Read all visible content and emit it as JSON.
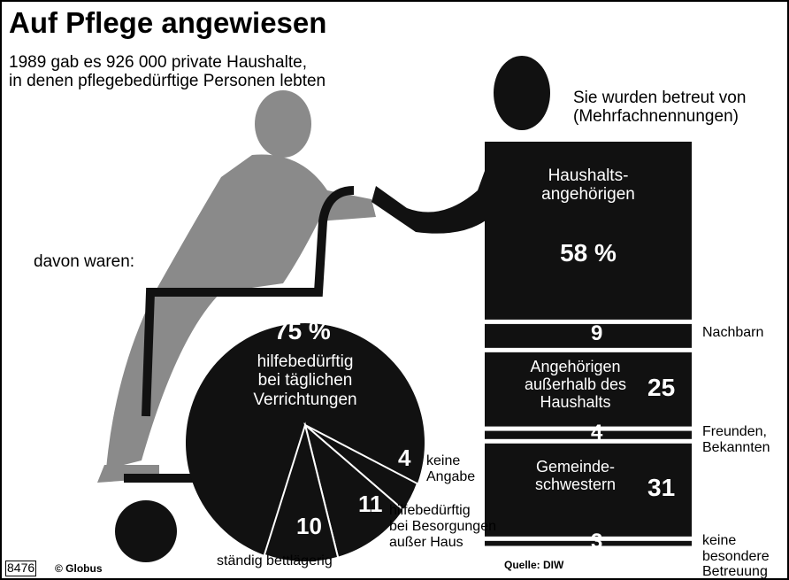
{
  "title": "Auf Pflege angewiesen",
  "subtitle": "1989 gab es 926 000 private Haushalte,\nin denen pflegebedürftige Personen lebten",
  "source": "Quelle: DIW",
  "credit": "© Globus",
  "code": "8476",
  "chart_data": [
    {
      "type": "pie",
      "title": "davon waren:",
      "categories": [
        "hilfebedürftig\nbei täglichen\nVerrichtungen",
        "keine\nAngabe",
        "hilfebedürftig\nbei Besorgungen\naußer Haus",
        "ständig bettlägerig"
      ],
      "values": [
        75,
        4,
        11,
        10
      ],
      "value_labels": [
        "75 %",
        "4",
        "11",
        "10"
      ],
      "color": "#111111"
    },
    {
      "type": "bar",
      "title": "Sie wurden betreut von\n(Mehrfachnennungen)",
      "categories": [
        "Haushalts-\nangehörigen",
        "Nachbarn",
        "Angehörigen\naußerhalb des\nHaushalts",
        "Freunden,\nBekannten",
        "Gemeinde-\nschwestern",
        "keine\nbesondere\nBetreuung"
      ],
      "values": [
        58,
        9,
        25,
        4,
        31,
        3
      ],
      "value_labels": [
        "58 %",
        "9",
        "25",
        "4",
        "31",
        "3"
      ],
      "color": "#111111"
    }
  ]
}
